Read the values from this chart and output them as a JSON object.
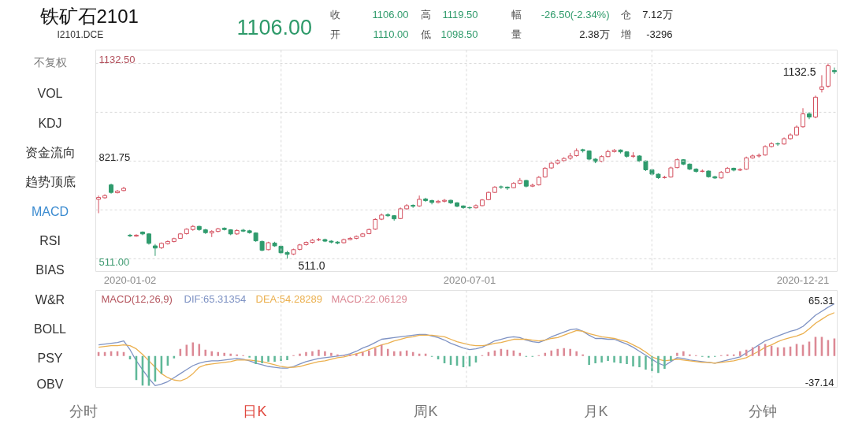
{
  "chart_data": [
    {
      "type": "candlestick",
      "title": "铁矿石2101",
      "subtitle": "I2101.DCE",
      "categories": [
        null,
        null,
        null,
        null,
        null,
        "2020-01-02",
        null,
        null,
        null,
        null,
        null,
        null,
        null,
        null,
        null,
        null,
        null,
        null,
        null,
        null,
        null,
        null,
        null,
        null,
        null,
        null,
        null,
        null,
        null,
        null,
        null,
        null,
        null,
        null,
        null,
        null,
        null,
        null,
        null,
        null,
        null,
        null,
        null,
        null,
        null,
        null,
        null,
        null,
        null,
        null,
        null,
        null,
        null,
        null,
        null,
        null,
        null,
        null,
        null,
        "2020-07-01",
        null,
        null,
        null,
        null,
        null,
        null,
        null,
        null,
        null,
        null,
        null,
        null,
        null,
        null,
        null,
        null,
        null,
        null,
        null,
        null,
        null,
        null,
        null,
        null,
        null,
        null,
        null,
        null,
        null,
        null,
        null,
        null,
        null,
        null,
        null,
        null,
        null,
        null,
        null,
        null,
        null,
        null,
        null,
        null,
        null,
        null,
        null,
        null,
        null,
        null,
        null,
        null,
        "2020-12-21",
        null,
        null,
        null,
        null,
        null
      ],
      "ohlc": [
        [
          700,
          712,
          656,
          706
        ],
        [
          705,
          716,
          702,
          712
        ],
        [
          746,
          750,
          718,
          722
        ],
        [
          721,
          730,
          719,
          726
        ],
        [
          728,
          740,
          726,
          735
        ],
        [
          586,
          590,
          580,
          584
        ],
        [
          583,
          589,
          581,
          586
        ],
        [
          596,
          598,
          586,
          590
        ],
        [
          590,
          592,
          556,
          560
        ],
        [
          552,
          558,
          520,
          545
        ],
        [
          546,
          563,
          542,
          560
        ],
        [
          559,
          569,
          556,
          566
        ],
        [
          566,
          578,
          563,
          575
        ],
        [
          576,
          593,
          574,
          590
        ],
        [
          591,
          608,
          588,
          605
        ],
        [
          604,
          618,
          600,
          614
        ],
        [
          614,
          616,
          600,
          604
        ],
        [
          603,
          606,
          590,
          594
        ],
        [
          593,
          602,
          580,
          598
        ],
        [
          598,
          609,
          595,
          606
        ],
        [
          608,
          611,
          601,
          604
        ],
        [
          603,
          605,
          586,
          590
        ],
        [
          590,
          605,
          587,
          601
        ],
        [
          602,
          606,
          596,
          599
        ],
        [
          600,
          603,
          591,
          594
        ],
        [
          593,
          595,
          565,
          568
        ],
        [
          566,
          569,
          535,
          538
        ],
        [
          540,
          565,
          538,
          562
        ],
        [
          561,
          565,
          549,
          552
        ],
        [
          551,
          553,
          527,
          530
        ],
        [
          531,
          536,
          511,
          525
        ],
        [
          526,
          543,
          523,
          540
        ],
        [
          541,
          558,
          538,
          555
        ],
        [
          556,
          566,
          553,
          563
        ],
        [
          563,
          574,
          560,
          570
        ],
        [
          571,
          577,
          567,
          572
        ],
        [
          572,
          575,
          564,
          567
        ],
        [
          567,
          570,
          560,
          564
        ],
        [
          564,
          567,
          557,
          561
        ],
        [
          562,
          575,
          560,
          572
        ],
        [
          572,
          580,
          570,
          576
        ],
        [
          576,
          585,
          573,
          582
        ],
        [
          582,
          593,
          580,
          590
        ],
        [
          591,
          607,
          589,
          604
        ],
        [
          605,
          640,
          603,
          636
        ],
        [
          637,
          655,
          634,
          650
        ],
        [
          651,
          656,
          644,
          648
        ],
        [
          648,
          650,
          632,
          638
        ],
        [
          639,
          674,
          637,
          670
        ],
        [
          670,
          685,
          667,
          680
        ],
        [
          681,
          684,
          673,
          678
        ],
        [
          679,
          712,
          676,
          700
        ],
        [
          701,
          705,
          692,
          696
        ],
        [
          696,
          699,
          684,
          690
        ],
        [
          690,
          698,
          687,
          694
        ],
        [
          694,
          701,
          690,
          697
        ],
        [
          697,
          699,
          685,
          689
        ],
        [
          689,
          691,
          675,
          678
        ],
        [
          679,
          681,
          670,
          674
        ],
        [
          674,
          677,
          669,
          673
        ],
        [
          673,
          684,
          671,
          680
        ],
        [
          680,
          701,
          678,
          698
        ],
        [
          699,
          725,
          697,
          722
        ],
        [
          722,
          742,
          720,
          739
        ],
        [
          740,
          744,
          733,
          739
        ],
        [
          739,
          741,
          730,
          736
        ],
        [
          737,
          755,
          735,
          751
        ],
        [
          751,
          768,
          748,
          760
        ],
        [
          760,
          762,
          738,
          742
        ],
        [
          742,
          750,
          739,
          745
        ],
        [
          746,
          774,
          744,
          770
        ],
        [
          771,
          803,
          769,
          799
        ],
        [
          800,
          819,
          797,
          815
        ],
        [
          815,
          827,
          811,
          823
        ],
        [
          823,
          834,
          819,
          830
        ],
        [
          831,
          848,
          826,
          838
        ],
        [
          839,
          862,
          836,
          855
        ],
        [
          858,
          861,
          849,
          855
        ],
        [
          854,
          856,
          824,
          828
        ],
        [
          828,
          831,
          815,
          820
        ],
        [
          821,
          840,
          818,
          836
        ],
        [
          836,
          858,
          834,
          852
        ],
        [
          852,
          860,
          849,
          856
        ],
        [
          857,
          859,
          846,
          851
        ],
        [
          851,
          853,
          833,
          837
        ],
        [
          837,
          850,
          832,
          838
        ],
        [
          838,
          840,
          819,
          822
        ],
        [
          822,
          824,
          790,
          794
        ],
        [
          794,
          797,
          776,
          780
        ],
        [
          780,
          783,
          765,
          769
        ],
        [
          769,
          775,
          766,
          770
        ],
        [
          771,
          804,
          769,
          800
        ],
        [
          801,
          830,
          799,
          826
        ],
        [
          826,
          828,
          809,
          812
        ],
        [
          812,
          814,
          793,
          796
        ],
        [
          796,
          799,
          785,
          789
        ],
        [
          789,
          795,
          786,
          790
        ],
        [
          790,
          792,
          769,
          772
        ],
        [
          772,
          775,
          765,
          768
        ],
        [
          768,
          790,
          766,
          786
        ],
        [
          786,
          803,
          784,
          799
        ],
        [
          799,
          801,
          789,
          793
        ],
        [
          793,
          799,
          790,
          795
        ],
        [
          796,
          836,
          794,
          832
        ],
        [
          832,
          843,
          829,
          838
        ],
        [
          838,
          846,
          833,
          840
        ],
        [
          841,
          872,
          839,
          868
        ],
        [
          868,
          882,
          865,
          877
        ],
        [
          877,
          881,
          870,
          876
        ],
        [
          876,
          897,
          874,
          893
        ],
        [
          893,
          910,
          890,
          905
        ],
        [
          905,
          935,
          902,
          930
        ],
        [
          931,
          990,
          928,
          972
        ],
        [
          972,
          978,
          955,
          962
        ],
        [
          962,
          1030,
          958,
          1025
        ],
        [
          1050,
          1095,
          1040,
          1058
        ],
        [
          1060,
          1132.5,
          1055,
          1125
        ],
        [
          1110,
          1119.5,
          1098.5,
          1106
        ]
      ],
      "colors": [
        "#d4505f",
        "#d4505f",
        "#2f9b6d",
        "#d4505f",
        "#d4505f",
        "#2f9b6d",
        "#d4505f",
        "#2f9b6d",
        "#2f9b6d",
        "#2f9b6d",
        "#d4505f",
        "#d4505f",
        "#d4505f",
        "#d4505f",
        "#d4505f",
        "#d4505f",
        "#2f9b6d",
        "#2f9b6d",
        "#d4505f",
        "#d4505f",
        "#2f9b6d",
        "#2f9b6d",
        "#d4505f",
        "#2f9b6d",
        "#2f9b6d",
        "#2f9b6d",
        "#2f9b6d",
        "#d4505f",
        "#2f9b6d",
        "#2f9b6d",
        "#2f9b6d",
        "#d4505f",
        "#d4505f",
        "#d4505f",
        "#d4505f",
        "#d4505f",
        "#2f9b6d",
        "#2f9b6d",
        "#2f9b6d",
        "#d4505f",
        "#d4505f",
        "#d4505f",
        "#d4505f",
        "#d4505f",
        "#d4505f",
        "#d4505f",
        "#2f9b6d",
        "#2f9b6d",
        "#d4505f",
        "#d4505f",
        "#2f9b6d",
        "#d4505f",
        "#2f9b6d",
        "#2f9b6d",
        "#d4505f",
        "#d4505f",
        "#2f9b6d",
        "#2f9b6d",
        "#2f9b6d",
        "#2f9b6d",
        "#d4505f",
        "#d4505f",
        "#d4505f",
        "#d4505f",
        "#2f9b6d",
        "#2f9b6d",
        "#d4505f",
        "#d4505f",
        "#2f9b6d",
        "#d4505f",
        "#d4505f",
        "#d4505f",
        "#d4505f",
        "#d4505f",
        "#d4505f",
        "#d4505f",
        "#d4505f",
        "#2f9b6d",
        "#2f9b6d",
        "#2f9b6d",
        "#d4505f",
        "#d4505f",
        "#d4505f",
        "#2f9b6d",
        "#2f9b6d",
        "#d4505f",
        "#2f9b6d",
        "#2f9b6d",
        "#2f9b6d",
        "#2f9b6d",
        "#d4505f",
        "#d4505f",
        "#d4505f",
        "#2f9b6d",
        "#2f9b6d",
        "#2f9b6d",
        "#d4505f",
        "#2f9b6d",
        "#2f9b6d",
        "#d4505f",
        "#d4505f",
        "#2f9b6d",
        "#d4505f",
        "#d4505f",
        "#d4505f",
        "#d4505f",
        "#d4505f",
        "#d4505f",
        "#2f9b6d",
        "#d4505f",
        "#d4505f",
        "#d4505f",
        "#d4505f",
        "#2f9b6d",
        "#d4505f",
        "#d4505f",
        "#d4505f",
        "#2f9b6d"
      ],
      "ylim": [
        468,
        1175
      ],
      "yticks": [
        {
          "value": 1132.5,
          "label": "1132.50"
        },
        {
          "value": 977.125,
          "label": null
        },
        821.75,
        {
          "value": 666.375,
          "label": null
        },
        {
          "value": 511,
          "label": "511.00"
        }
      ],
      "grid": true,
      "annotations": [
        "1106.00",
        "收",
        "1106.00",
        "高",
        "1119.50",
        "幅",
        "-26.50(-2.34%)",
        "仓",
        "7.12万",
        "开",
        "1110.00",
        "低",
        "1098.50",
        "量",
        "2.38万",
        "增",
        "-3296",
        "不复权",
        "VOL",
        "KDJ",
        "资金流向",
        "趋势顶底",
        "MACD",
        "RSI",
        "BIAS",
        "W&R",
        "BOLL",
        "PSY",
        "OBV",
        "分时",
        "日K",
        "周K",
        "月K",
        "分钟",
        "1132.5",
        "511.0"
      ]
    },
    {
      "type": "line",
      "title": "MACD(12,26,9)",
      "categories": [
        null,
        null,
        null,
        null,
        null,
        null,
        null,
        null,
        null,
        null,
        null,
        null,
        null,
        null,
        null,
        null,
        null,
        null,
        null,
        null,
        null,
        null,
        null,
        null,
        null,
        null,
        null,
        null,
        null,
        null,
        null,
        null,
        null,
        null,
        null,
        null,
        null,
        null,
        null,
        null,
        null,
        null,
        null,
        null,
        null,
        null,
        null,
        null,
        null,
        null,
        null,
        null,
        null,
        null,
        null,
        null,
        null,
        null,
        null,
        null,
        null,
        null,
        null,
        null,
        null,
        null,
        null,
        null,
        null,
        null,
        null,
        null,
        null,
        null,
        null,
        null,
        null,
        null,
        null,
        null,
        null,
        null,
        null,
        null,
        null,
        null,
        null,
        null,
        null,
        null,
        null,
        null,
        null,
        null,
        null,
        null,
        null,
        null,
        null,
        null,
        null,
        null,
        null,
        null,
        null,
        null,
        null,
        null,
        null,
        null,
        null,
        null,
        null,
        null,
        null,
        null,
        null,
        null
      ],
      "tick_labels": "y",
      "ylim": [
        -39.1,
        82.1
      ],
      "yticks": [
        65.31,
        -37.14
      ],
      "grid": "x",
      "legend": "top left",
      "series": [
        {
          "name": "DIF:65.31354",
          "color": "#7f93c4",
          "values": [
            14,
            15,
            16,
            17,
            19,
            8,
            -6,
            -17,
            -28,
            -37,
            -35,
            -32,
            -27,
            -22,
            -17,
            -12,
            -9,
            -7,
            -6,
            -6,
            -5,
            -4,
            -3,
            -4,
            -6,
            -9,
            -11,
            -13,
            -14,
            -15,
            -15,
            -13,
            -10,
            -7,
            -5,
            -3,
            -2,
            -1,
            0,
            1,
            3,
            6,
            10,
            13,
            17,
            21,
            22,
            23,
            24,
            25,
            26,
            27,
            27,
            25,
            23,
            20,
            16,
            13,
            10,
            8,
            9,
            11,
            15,
            19,
            21,
            23,
            24,
            23,
            20,
            18,
            17,
            20,
            24,
            27,
            30,
            33,
            34,
            31,
            26,
            22,
            22,
            21,
            21,
            18,
            15,
            11,
            6,
            1,
            -4,
            -9,
            -12,
            -7,
            -2,
            -3,
            -5,
            -6,
            -7,
            -8,
            -9,
            -7,
            -5,
            -3,
            -1,
            4,
            9,
            14,
            19,
            22,
            25,
            28,
            31,
            33,
            37,
            44,
            51,
            56,
            61,
            65.31354
          ]
        },
        {
          "name": "DEA:54.28289",
          "color": "#ebb04f",
          "values": [
            11,
            12,
            13,
            13,
            14,
            13,
            9,
            2,
            -6,
            -14,
            -22,
            -27,
            -30,
            -31,
            -28,
            -22,
            -14,
            -11,
            -10,
            -9,
            -8,
            -7,
            -5,
            -5,
            -5,
            -6,
            -7,
            -9,
            -11,
            -13,
            -14,
            -14,
            -13,
            -11,
            -9,
            -7,
            -6,
            -4,
            -2,
            -1,
            1,
            3,
            5,
            8,
            11,
            14,
            16,
            19,
            21,
            23,
            24,
            26,
            26,
            26,
            25,
            24,
            21,
            18,
            16,
            14,
            13,
            13,
            14,
            16,
            17,
            19,
            21,
            21,
            21,
            20,
            19,
            20,
            22,
            23,
            26,
            29,
            32,
            31,
            28,
            26,
            24,
            23,
            22,
            20,
            18,
            14,
            10,
            5,
            -1,
            -4,
            -6,
            -5,
            -4,
            -5,
            -6,
            -7,
            -8,
            -8,
            -9,
            -8,
            -7,
            -6,
            -4,
            -2,
            2,
            6,
            11,
            14,
            18,
            21,
            23,
            25,
            28,
            34,
            41,
            46,
            51,
            54.28289
          ]
        },
        {
          "name": "MACD:22.06129",
          "type": "bar",
          "values": [
            5,
            5,
            6,
            6,
            5,
            -4,
            -30,
            -37,
            -37.14,
            -32,
            -22,
            -12,
            -3,
            9,
            14,
            17,
            15,
            8,
            6,
            5,
            4,
            3,
            2,
            1,
            -2,
            -10,
            -9,
            -7,
            -7,
            -6,
            -5,
            1,
            3,
            5,
            6,
            8,
            6,
            4,
            2,
            1,
            2,
            3,
            5,
            7,
            10,
            14,
            9,
            6,
            6,
            7,
            5,
            3,
            3,
            -1,
            -4,
            -9,
            -11,
            -12,
            -14,
            -13,
            -8,
            1,
            5,
            7,
            9,
            8,
            7,
            4,
            -1,
            -1,
            1,
            4,
            7,
            9,
            10,
            9,
            6,
            2,
            -11,
            -9,
            -8,
            -6,
            -8,
            -9,
            -10,
            -13,
            -14,
            -17,
            -19,
            -21,
            -16,
            -6,
            4,
            6,
            2,
            1,
            -1,
            -2,
            -1,
            1,
            2,
            2,
            6,
            8,
            11,
            13,
            15,
            13,
            11,
            11,
            12,
            15,
            14,
            18,
            24,
            24,
            20,
            22.06129
          ],
          "colors": [
            "#dc8995",
            "#dc8995",
            "#dc8995",
            "#dc8995",
            "#dc8995",
            "#5fb898",
            "#5fb898",
            "#5fb898",
            "#5fb898",
            "#5fb898",
            "#5fb898",
            "#5fb898",
            "#5fb898",
            "#dc8995",
            "#dc8995",
            "#dc8995",
            "#dc8995",
            "#dc8995",
            "#dc8995",
            "#dc8995",
            "#dc8995",
            "#dc8995",
            "#dc8995",
            "#dc8995",
            "#5fb898",
            "#5fb898",
            "#5fb898",
            "#5fb898",
            "#5fb898",
            "#5fb898",
            "#5fb898",
            "#dc8995",
            "#dc8995",
            "#dc8995",
            "#dc8995",
            "#dc8995",
            "#dc8995",
            "#dc8995",
            "#dc8995",
            "#dc8995",
            "#dc8995",
            "#dc8995",
            "#dc8995",
            "#dc8995",
            "#dc8995",
            "#dc8995",
            "#dc8995",
            "#dc8995",
            "#dc8995",
            "#dc8995",
            "#dc8995",
            "#dc8995",
            "#dc8995",
            "#5fb898",
            "#5fb898",
            "#5fb898",
            "#5fb898",
            "#5fb898",
            "#5fb898",
            "#5fb898",
            "#5fb898",
            "#dc8995",
            "#dc8995",
            "#dc8995",
            "#dc8995",
            "#dc8995",
            "#dc8995",
            "#dc8995",
            "#5fb898",
            "#5fb898",
            "#dc8995",
            "#dc8995",
            "#dc8995",
            "#dc8995",
            "#dc8995",
            "#dc8995",
            "#dc8995",
            "#dc8995",
            "#5fb898",
            "#5fb898",
            "#5fb898",
            "#5fb898",
            "#5fb898",
            "#5fb898",
            "#5fb898",
            "#5fb898",
            "#5fb898",
            "#5fb898",
            "#5fb898",
            "#5fb898",
            "#5fb898",
            "#5fb898",
            "#dc8995",
            "#dc8995",
            "#dc8995",
            "#dc8995",
            "#5fb898",
            "#5fb898",
            "#5fb898",
            "#dc8995",
            "#dc8995",
            "#dc8995",
            "#dc8995",
            "#dc8995",
            "#dc8995",
            "#dc8995",
            "#dc8995",
            "#dc8995",
            "#dc8995",
            "#dc8995",
            "#dc8995",
            "#dc8995",
            "#dc8995",
            "#dc8995",
            "#dc8995",
            "#dc8995",
            "#dc8995",
            "#dc8995"
          ]
        }
      ]
    }
  ]
}
